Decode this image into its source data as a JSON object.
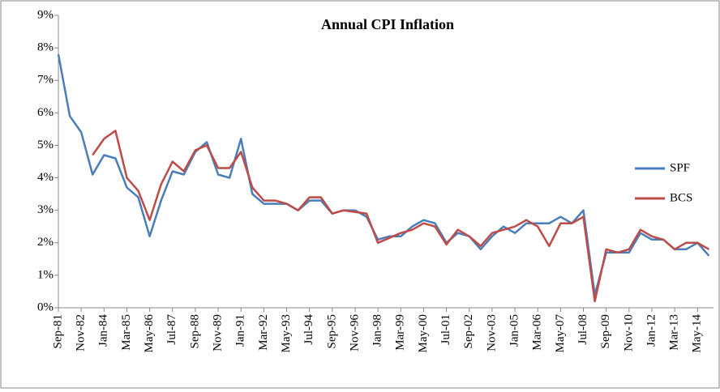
{
  "chart_data": {
    "type": "line",
    "title": "Annual CPI Inflation",
    "categories": [
      "Sep-81",
      null,
      "Nov-82",
      null,
      "Jan-84",
      null,
      "Mar-85",
      null,
      "May-86",
      null,
      "Jul-87",
      null,
      "Sep-88",
      null,
      "Nov-89",
      null,
      "Jan-91",
      null,
      "Mar-92",
      null,
      "May-93",
      null,
      "Jul-94",
      null,
      "Sep-95",
      null,
      "Nov-96",
      null,
      "Jan-98",
      null,
      "Mar-99",
      null,
      "May-00",
      null,
      "Jul-01",
      null,
      "Sep-02",
      null,
      "Nov-03",
      null,
      "Jan-05",
      null,
      "Mar-06",
      null,
      "May-07",
      null,
      "Jul-08",
      null,
      "Sep-09",
      null,
      "Nov-10",
      null,
      "Jan-12",
      null,
      "Mar-13",
      null,
      "May-14",
      null
    ],
    "series": [
      {
        "name": "SPF",
        "color": "#4a7ebb",
        "values": [
          7.8,
          5.9,
          5.4,
          4.1,
          4.7,
          4.6,
          3.7,
          3.4,
          2.2,
          3.3,
          4.2,
          4.1,
          4.8,
          5.1,
          4.1,
          4.0,
          5.2,
          3.5,
          3.2,
          3.2,
          3.2,
          3.0,
          3.3,
          3.3,
          2.9,
          3.0,
          3.0,
          2.8,
          2.1,
          2.2,
          2.2,
          2.5,
          2.7,
          2.6,
          2.0,
          2.3,
          2.2,
          1.8,
          2.2,
          2.5,
          2.3,
          2.6,
          2.6,
          2.6,
          2.8,
          2.6,
          3.0,
          0.4,
          1.7,
          1.7,
          1.7,
          2.3,
          2.1,
          2.1,
          1.8,
          1.8,
          2.0,
          1.6
        ]
      },
      {
        "name": "BCS",
        "color": "#be4b48",
        "values": [
          null,
          null,
          null,
          4.7,
          5.2,
          5.45,
          4.0,
          3.6,
          2.7,
          3.8,
          4.5,
          4.2,
          4.85,
          5.0,
          4.3,
          4.3,
          4.8,
          3.7,
          3.3,
          3.3,
          3.2,
          3.0,
          3.4,
          3.4,
          2.9,
          3.0,
          2.95,
          2.9,
          2.0,
          2.15,
          2.3,
          2.4,
          2.6,
          2.5,
          1.95,
          2.4,
          2.2,
          1.9,
          2.3,
          2.4,
          2.5,
          2.7,
          2.5,
          1.9,
          2.6,
          2.6,
          2.8,
          0.2,
          1.8,
          1.7,
          1.8,
          2.4,
          2.2,
          2.1,
          1.8,
          2.0,
          2.0,
          1.8
        ]
      }
    ],
    "ylim": [
      0,
      9
    ],
    "yticks": [
      {
        "value": 0,
        "label": "0%"
      },
      {
        "value": 1,
        "label": "1%"
      },
      {
        "value": 2,
        "label": "2%"
      },
      {
        "value": 3,
        "label": "3%"
      },
      {
        "value": 4,
        "label": "4%"
      },
      {
        "value": 5,
        "label": "5%"
      },
      {
        "value": 6,
        "label": "6%"
      },
      {
        "value": 7,
        "label": "7%"
      },
      {
        "value": 8,
        "label": "8%"
      },
      {
        "value": 9,
        "label": "9%"
      }
    ],
    "grid": false,
    "legend": "right"
  }
}
